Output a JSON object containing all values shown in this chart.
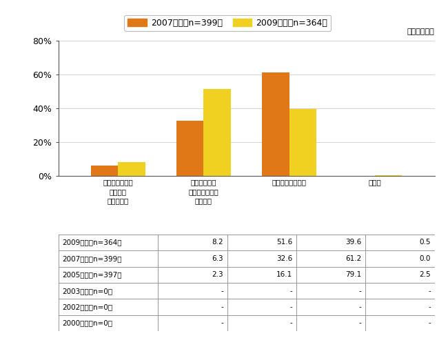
{
  "legend_labels": [
    "2007年度（n=399）",
    "2009年度（n=364）"
  ],
  "bar_color_2007": "#E07818",
  "bar_color_2009": "#F0D020",
  "unit_label": "（単位：％）",
  "categories": [
    "どういうものか\nある程度\n知っている",
    "聂いたことは\nあるが詳しくは\n知らない",
    "聂いたことがない",
    "無回答"
  ],
  "values_2007": [
    6.3,
    32.6,
    61.2,
    0.0
  ],
  "values_2009": [
    8.2,
    51.6,
    39.6,
    0.5
  ],
  "ylim": [
    0,
    80
  ],
  "yticks": [
    0,
    20,
    40,
    60,
    80
  ],
  "ytick_labels": [
    "0%",
    "20%",
    "40%",
    "60%",
    "80%"
  ],
  "table_rows": [
    {
      "label": "2009年度（n=364）",
      "values": [
        "8.2",
        "51.6",
        "39.6",
        "0.5"
      ]
    },
    {
      "label": "2007年度（n=399）",
      "values": [
        "6.3",
        "32.6",
        "61.2",
        "0.0"
      ]
    },
    {
      "label": "2005年度（n=397）",
      "values": [
        "2.3",
        "16.1",
        "79.1",
        "2.5"
      ]
    },
    {
      "label": "2003年度（n=0）",
      "values": [
        "-",
        "-",
        "-",
        "-"
      ]
    },
    {
      "label": "2002年度（n=0）",
      "values": [
        "-",
        "-",
        "-",
        "-"
      ]
    },
    {
      "label": "2000年度（n=0）",
      "values": [
        "-",
        "-",
        "-",
        "-"
      ]
    }
  ],
  "bg": "#ffffff"
}
